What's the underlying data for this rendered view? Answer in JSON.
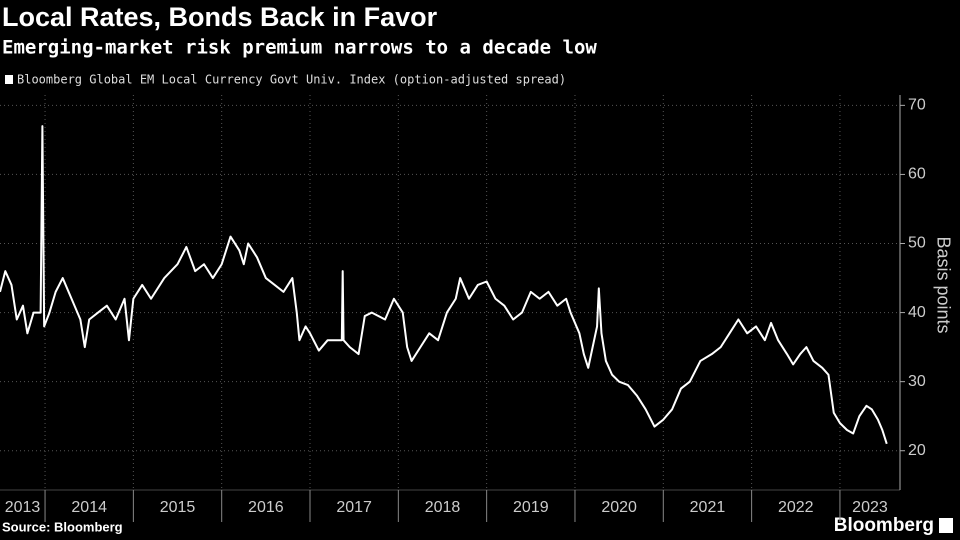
{
  "chart_data": {
    "type": "line",
    "title": "Local Rates, Bonds Back in Favor",
    "subtitle": "Emerging-market risk premium narrows to a decade low",
    "y_label": "Basis points",
    "source": "Source: Bloomberg",
    "brand": "Bloomberg",
    "grid": true,
    "xlim": [
      2013.49,
      2023.68
    ],
    "ylim": [
      17.5,
      71.5
    ],
    "yticks": [
      20,
      30,
      40,
      50,
      60,
      70
    ],
    "xticks": [
      2013,
      2014,
      2015,
      2016,
      2017,
      2018,
      2019,
      2020,
      2021,
      2022,
      2023
    ],
    "x": [
      2013.49,
      2013.55,
      2013.62,
      2013.68,
      2013.75,
      2013.8,
      2013.87,
      2013.95,
      2013.97,
      2013.99,
      2014.05,
      2014.12,
      2014.2,
      2014.3,
      2014.4,
      2014.45,
      2014.5,
      2014.6,
      2014.7,
      2014.8,
      2014.9,
      2014.95,
      2015.0,
      2015.1,
      2015.2,
      2015.35,
      2015.5,
      2015.6,
      2015.7,
      2015.8,
      2015.9,
      2016.0,
      2016.1,
      2016.2,
      2016.25,
      2016.3,
      2016.4,
      2016.5,
      2016.6,
      2016.7,
      2016.8,
      2016.85,
      2016.88,
      2016.95,
      2017.0,
      2017.1,
      2017.2,
      2017.36,
      2017.37,
      2017.38,
      2017.45,
      2017.55,
      2017.62,
      2017.7,
      2017.85,
      2017.95,
      2018.05,
      2018.1,
      2018.15,
      2018.25,
      2018.35,
      2018.45,
      2018.55,
      2018.65,
      2018.7,
      2018.8,
      2018.9,
      2019.0,
      2019.1,
      2019.2,
      2019.3,
      2019.4,
      2019.5,
      2019.6,
      2019.7,
      2019.8,
      2019.9,
      2019.95,
      2020.05,
      2020.1,
      2020.15,
      2020.2,
      2020.25,
      2020.27,
      2020.3,
      2020.35,
      2020.42,
      2020.5,
      2020.6,
      2020.7,
      2020.8,
      2020.9,
      2021.0,
      2021.1,
      2021.2,
      2021.3,
      2021.42,
      2021.55,
      2021.65,
      2021.75,
      2021.85,
      2021.95,
      2022.05,
      2022.15,
      2022.22,
      2022.3,
      2022.4,
      2022.47,
      2022.55,
      2022.62,
      2022.7,
      2022.8,
      2022.87,
      2022.93,
      2023.0,
      2023.08,
      2023.15,
      2023.22,
      2023.3,
      2023.36,
      2023.43,
      2023.48,
      2023.53
    ],
    "series": [
      {
        "name": "Bloomberg Global EM Local Currency Govt Univ. Index (option-adjusted spread)",
        "color": "#ffffff",
        "values": [
          43,
          46,
          44,
          39,
          41,
          37,
          40,
          40,
          67,
          38,
          40,
          43,
          45,
          42,
          39,
          35,
          39,
          40,
          41,
          39,
          42,
          36,
          42,
          44,
          42,
          45,
          47,
          49.5,
          46,
          47,
          45,
          47,
          51,
          49,
          47,
          50,
          48,
          45,
          44,
          43,
          45,
          40,
          36,
          38,
          37,
          34.5,
          36,
          36,
          46,
          36,
          35,
          34,
          39.5,
          40,
          39,
          42,
          40,
          35,
          33,
          35,
          37,
          36,
          40,
          42,
          45,
          42,
          44,
          44.5,
          42,
          41,
          39,
          40,
          43,
          42,
          43,
          41,
          42,
          40,
          37,
          34,
          32,
          35,
          38,
          43.5,
          37,
          33,
          31,
          30,
          29.5,
          28,
          26,
          23.5,
          24.5,
          26,
          29,
          30,
          33,
          34,
          35,
          37,
          39,
          37,
          38,
          36,
          38.5,
          36,
          34,
          32.5,
          34,
          35,
          33,
          32,
          31,
          25.5,
          24,
          23,
          22.5,
          25,
          26.5,
          26,
          24.5,
          23,
          21
        ]
      }
    ]
  }
}
